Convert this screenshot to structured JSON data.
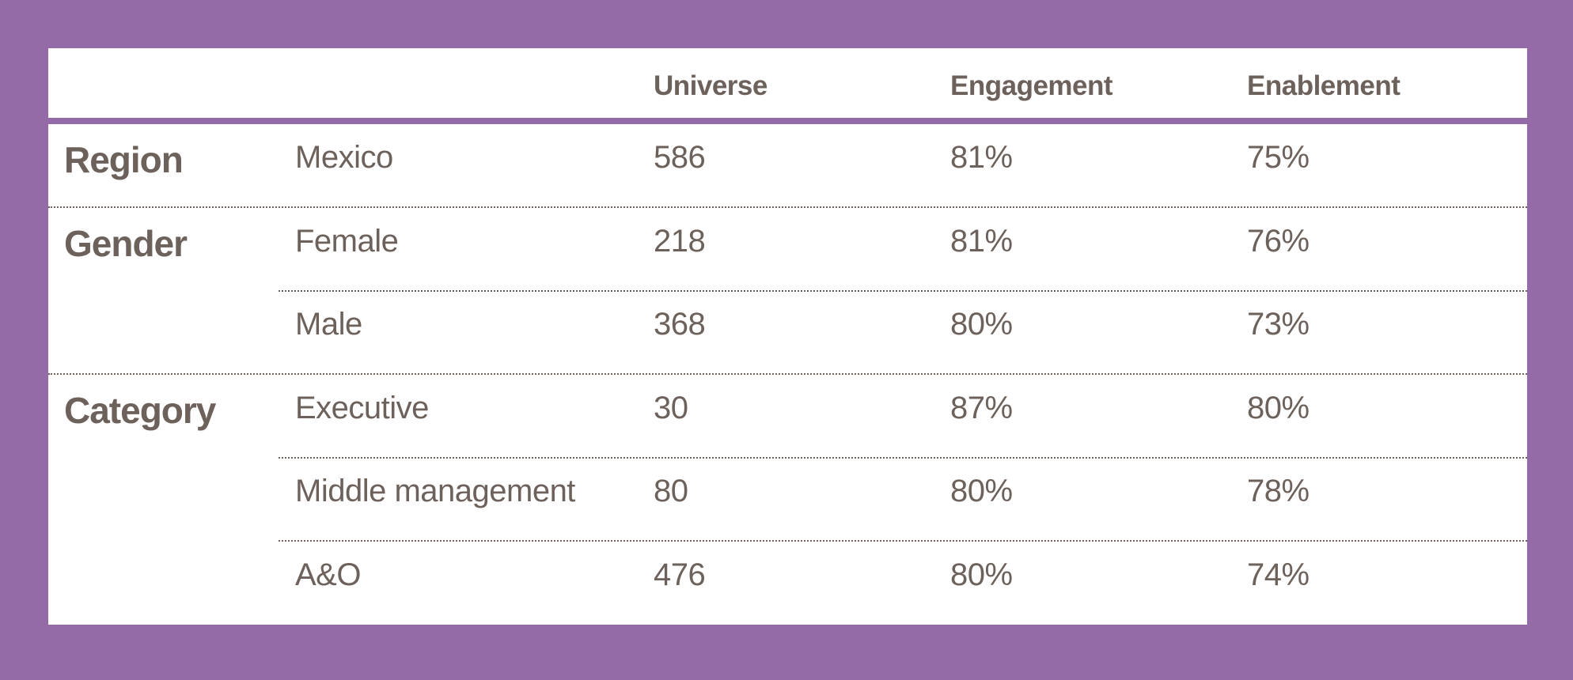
{
  "table": {
    "columns": [
      "Universe",
      "Engagement",
      "Enablement"
    ],
    "groups": [
      {
        "label": "Region",
        "rows": [
          {
            "item": "Mexico",
            "universe": "586",
            "engagement": "81%",
            "enablement": "75%"
          }
        ]
      },
      {
        "label": "Gender",
        "rows": [
          {
            "item": "Female",
            "universe": "218",
            "engagement": "81%",
            "enablement": "76%"
          },
          {
            "item": "Male",
            "universe": "368",
            "engagement": "80%",
            "enablement": "73%"
          }
        ]
      },
      {
        "label": "Category",
        "rows": [
          {
            "item": "Executive",
            "universe": "30",
            "engagement": "87%",
            "enablement": "80%"
          },
          {
            "item": "Middle management",
            "universe": "80",
            "engagement": "80%",
            "enablement": "78%"
          },
          {
            "item": "A&O",
            "universe": "476",
            "engagement": "80%",
            "enablement": "74%"
          }
        ]
      }
    ]
  },
  "colors": {
    "frame": "#946aa7",
    "panel": "#ffffff",
    "text": "#6d615b"
  }
}
